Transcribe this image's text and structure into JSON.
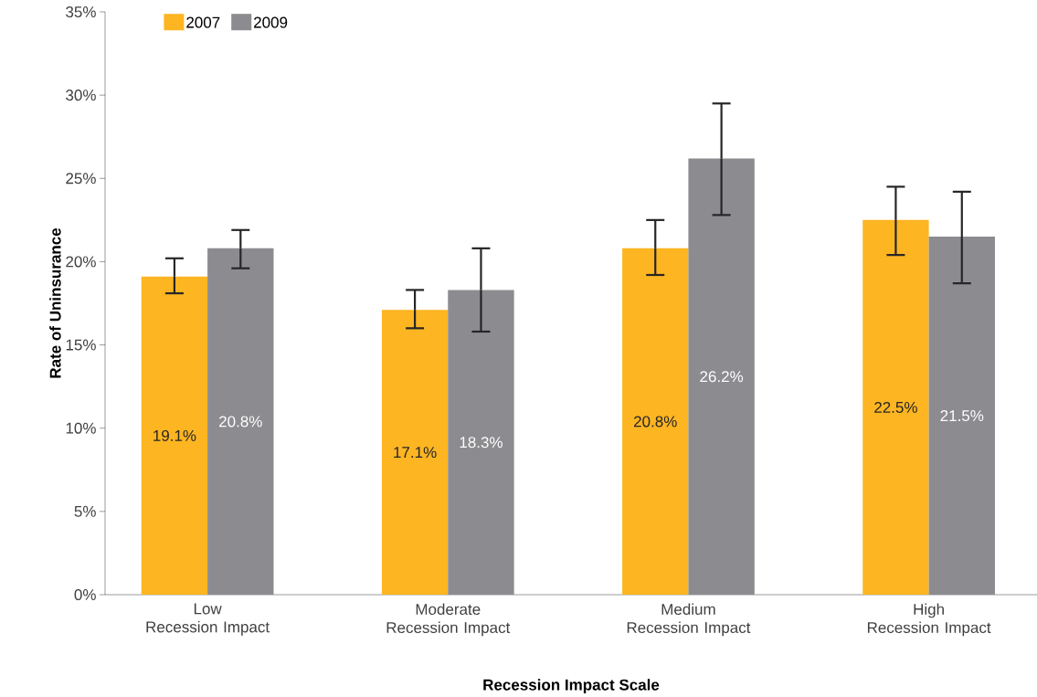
{
  "chart_data": {
    "type": "bar",
    "xlabel": "Recession Impact Scale",
    "ylabel": "Rate of Uninsurance",
    "categories": [
      "Low Recession Impact",
      "Moderate Recession Impact",
      "Medium Recession Impact",
      "High Recession Impact"
    ],
    "series": [
      {
        "name": "2007",
        "color": "#fdb522",
        "values": [
          19.1,
          17.1,
          20.8,
          22.5
        ],
        "value_labels": [
          "19.1%",
          "17.1%",
          "20.8%",
          "22.5%"
        ],
        "errors": [
          [
            18.1,
            20.2
          ],
          [
            16.0,
            18.3
          ],
          [
            19.2,
            22.5
          ],
          [
            20.4,
            24.5
          ]
        ]
      },
      {
        "name": "2009",
        "color": "#8c8c90",
        "values": [
          20.8,
          18.3,
          26.2,
          21.5
        ],
        "value_labels": [
          "20.8%",
          "18.3%",
          "26.2%",
          "21.5%"
        ],
        "errors": [
          [
            19.6,
            21.9
          ],
          [
            15.8,
            20.8
          ],
          [
            22.8,
            29.5
          ],
          [
            18.7,
            24.2
          ]
        ]
      }
    ],
    "ylim": [
      0,
      35
    ],
    "yticks": [
      {
        "value": 0,
        "label": "0%"
      },
      {
        "value": 5,
        "label": "5%"
      },
      {
        "value": 10,
        "label": "10%"
      },
      {
        "value": 15,
        "label": "15%"
      },
      {
        "value": 20,
        "label": "20%"
      },
      {
        "value": 25,
        "label": "25%"
      },
      {
        "value": 30,
        "label": "30%"
      },
      {
        "value": 35,
        "label": "35%"
      }
    ],
    "grid": false,
    "legend": "top left"
  }
}
